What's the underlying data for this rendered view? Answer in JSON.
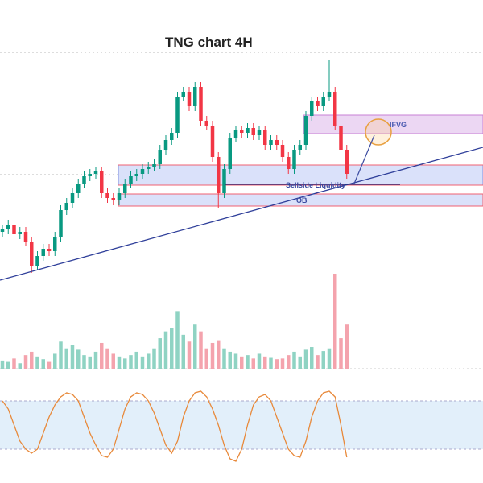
{
  "chart_data": {
    "type": "candlestick",
    "title": "TNG chart 4H",
    "annotations": {
      "ifvg": "IFVG",
      "sellside": "Sellside Liquidity",
      "ob": "OB"
    },
    "up_color": "#089981",
    "down_color": "#f23645",
    "ylim": [
      0,
      100
    ],
    "open": [
      24,
      25,
      27,
      23,
      24,
      20,
      10,
      14,
      17,
      16,
      22,
      33,
      36,
      40,
      44,
      47,
      48,
      49,
      40,
      38,
      37,
      40,
      44,
      47,
      48,
      50,
      51,
      52,
      58,
      62,
      65,
      80,
      82,
      76,
      84,
      70,
      68,
      55,
      40,
      50,
      63,
      66,
      65,
      67,
      64,
      66,
      60,
      62,
      60,
      55,
      50,
      58,
      60,
      72,
      78,
      76,
      80,
      82,
      68,
      58
    ],
    "high": [
      27,
      29,
      29,
      26,
      26,
      22,
      16,
      19,
      19,
      24,
      35,
      38,
      42,
      46,
      49,
      50,
      51,
      51,
      42,
      40,
      42,
      46,
      49,
      50,
      52,
      53,
      54,
      60,
      64,
      67,
      82,
      84,
      84,
      86,
      86,
      72,
      70,
      57,
      52,
      65,
      68,
      68,
      69,
      69,
      68,
      68,
      64,
      64,
      62,
      57,
      60,
      62,
      74,
      80,
      80,
      82,
      95,
      84,
      70,
      60
    ],
    "low": [
      22,
      23,
      21,
      21,
      18,
      7,
      8,
      12,
      14,
      14,
      20,
      31,
      34,
      38,
      42,
      45,
      46,
      38,
      36,
      35,
      35,
      38,
      42,
      45,
      46,
      48,
      49,
      50,
      56,
      60,
      63,
      78,
      74,
      74,
      68,
      66,
      53,
      34,
      38,
      48,
      61,
      63,
      63,
      62,
      62,
      58,
      58,
      58,
      53,
      48,
      48,
      56,
      58,
      70,
      74,
      74,
      78,
      66,
      56,
      46
    ],
    "close": [
      25,
      27,
      23,
      24,
      20,
      10,
      14,
      17,
      16,
      22,
      33,
      36,
      40,
      44,
      47,
      48,
      49,
      40,
      38,
      37,
      40,
      44,
      47,
      48,
      50,
      51,
      52,
      58,
      62,
      65,
      80,
      82,
      76,
      84,
      70,
      68,
      55,
      40,
      50,
      63,
      66,
      65,
      67,
      64,
      66,
      60,
      62,
      60,
      55,
      50,
      58,
      60,
      72,
      78,
      76,
      80,
      82,
      68,
      58,
      48
    ],
    "volume": {
      "ylim": [
        0,
        140
      ],
      "values": [
        12,
        10,
        15,
        8,
        20,
        25,
        18,
        14,
        10,
        22,
        40,
        30,
        35,
        28,
        20,
        18,
        25,
        38,
        30,
        22,
        18,
        15,
        20,
        25,
        18,
        22,
        30,
        45,
        55,
        60,
        85,
        50,
        40,
        65,
        55,
        30,
        38,
        42,
        30,
        25,
        22,
        18,
        20,
        15,
        22,
        18,
        16,
        14,
        15,
        20,
        25,
        18,
        28,
        32,
        20,
        26,
        30,
        140,
        45,
        65
      ]
    },
    "stochastic": {
      "ylim": [
        0,
        100
      ],
      "band": [
        20,
        80
      ],
      "color": "#e8893a",
      "values": [
        80,
        70,
        50,
        30,
        20,
        15,
        20,
        40,
        60,
        75,
        85,
        90,
        88,
        80,
        60,
        40,
        25,
        12,
        10,
        20,
        45,
        70,
        85,
        90,
        88,
        80,
        65,
        45,
        25,
        15,
        30,
        60,
        80,
        90,
        92,
        85,
        70,
        50,
        25,
        8,
        5,
        20,
        50,
        75,
        85,
        88,
        80,
        60,
        40,
        20,
        12,
        10,
        30,
        60,
        80,
        90,
        92,
        85,
        50,
        10
      ]
    }
  }
}
